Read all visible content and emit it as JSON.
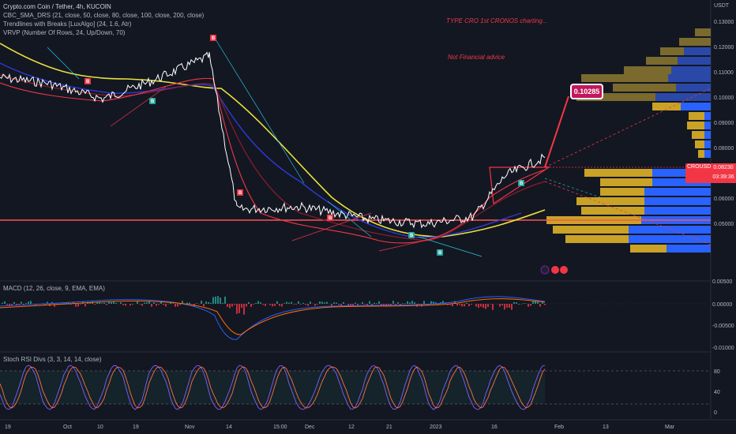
{
  "header": {
    "symbol_line": "Crypto.com Coin / Tether, 4h, KUCOIN",
    "indicator1": "CBC_SMA_DRS (21, close, 50, close, 80, close, 100, close, 200, close)",
    "indicator2": "Trendlines with Breaks [LuxAlgo] (24, 1.6, Atr)",
    "indicator3": "VRVP (Number Of Rows, 24, Up/Down, 70)"
  },
  "notes": {
    "title_note": "TYPE CRO 1st  CRONOS charting...",
    "disclaimer": "Not Financial advice"
  },
  "price_panel": {
    "currency": "USDT",
    "ticks": [
      "0.13000",
      "0.12000",
      "0.11000",
      "0.10000",
      "0.09000",
      "0.08000",
      "0.07000",
      "0.06000",
      "0.05000"
    ],
    "symbol_tag": "CROUSDT",
    "current_price": "0.08230",
    "countdown": "03:39:36",
    "target_label": "0.10285"
  },
  "macd_panel": {
    "label": "MACD (12, 26, close, 9, EMA, EMA)",
    "ticks": [
      "0.00500",
      "0.00000",
      "-0.00500",
      "-0.01000"
    ]
  },
  "stoch_panel": {
    "label": "Stoch RSI Divs (3, 3, 14, 14, close)",
    "ticks": [
      "80",
      "40",
      "0"
    ]
  },
  "time_axis": {
    "labels": [
      "19",
      "Oct",
      "10",
      "19",
      "Nov",
      "14",
      "15:00",
      "Dec",
      "12",
      "21",
      "2023",
      "16",
      "Feb",
      "13",
      "Mar"
    ]
  },
  "colors": {
    "background": "#131722",
    "price": "#ffffff",
    "sma21": "#f23645",
    "sma200": "#e8e03c",
    "sma_blue": "#2b3bd6",
    "vol_up": "#2962ff",
    "vol_down": "#c9a227",
    "support": "#ff5252"
  },
  "chart_data": {
    "type": "line",
    "title": "Crypto.com Coin / Tether, 4h, KUCOIN",
    "x": [
      "19",
      "Oct",
      "10",
      "19",
      "Nov",
      "14",
      "Dec",
      "12",
      "21",
      "2023",
      "16",
      "Feb"
    ],
    "series": [
      {
        "name": "CROUSDT",
        "values": [
          0.1105,
          0.1085,
          0.103,
          0.109,
          0.118,
          0.064,
          0.065,
          0.0605,
          0.059,
          0.0615,
          0.076,
          0.0823
        ]
      }
    ],
    "ylim": [
      0.045,
      0.134
    ],
    "horizontal_line": 0.0655,
    "last_price": 0.0823,
    "target": 0.10285
  }
}
